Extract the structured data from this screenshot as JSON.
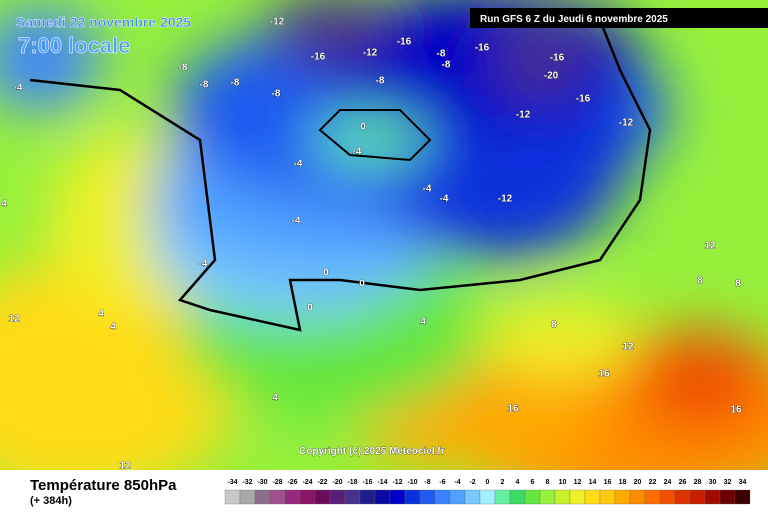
{
  "header": {
    "date": "Samedi 22 novembre 2025",
    "time": "7:00 locale",
    "run": "Run GFS 6 Z du Jeudi 6 novembre 2025"
  },
  "copyright": "Copyright (c) 2025 Meteociel.fr",
  "footer": {
    "title": "Température 850hPa",
    "lead": "(+ 384h)"
  },
  "legend": {
    "ticks": [
      -34,
      -32,
      -30,
      -28,
      -26,
      -24,
      -22,
      -20,
      -18,
      -16,
      -14,
      -12,
      -10,
      -8,
      -6,
      -4,
      -2,
      0,
      2,
      4,
      6,
      8,
      10,
      12,
      14,
      16,
      18,
      20,
      22,
      24,
      26,
      28,
      30,
      32,
      34
    ],
    "colors": [
      "#c8c8c8",
      "#a8a8a8",
      "#8c6e8c",
      "#a0508c",
      "#96287d",
      "#8c1464",
      "#6e0a5a",
      "#5a1e78",
      "#46328c",
      "#1e1e8c",
      "#0a0aa0",
      "#0000c8",
      "#0a32dc",
      "#1e5af0",
      "#3c82ff",
      "#50a0ff",
      "#78c8ff",
      "#a0f0ff",
      "#64f0a0",
      "#3cdc64",
      "#64e63c",
      "#96f03c",
      "#c8f028",
      "#f0f028",
      "#ffdc14",
      "#ffc80a",
      "#ffaa00",
      "#ff8c00",
      "#ff6e00",
      "#f05000",
      "#dc3200",
      "#c81e00",
      "#a00a00",
      "#6e0000",
      "#3c0000"
    ]
  },
  "map_labels": [
    "-12",
    "-12",
    "-12",
    "-12",
    "-12",
    "-16",
    "-16",
    "-16",
    "-16",
    "-16",
    "-20",
    "-8",
    "-8",
    "-8",
    "-8",
    "-8",
    "-8",
    "-8",
    "-4",
    "-4",
    "-4",
    "-4",
    "-4",
    "-4",
    "-4",
    "0",
    "0",
    "0",
    "0",
    "4",
    "4",
    "4",
    "4",
    "4",
    "8",
    "8",
    "8",
    "12",
    "12",
    "12",
    "12",
    "16",
    "16",
    "16"
  ]
}
